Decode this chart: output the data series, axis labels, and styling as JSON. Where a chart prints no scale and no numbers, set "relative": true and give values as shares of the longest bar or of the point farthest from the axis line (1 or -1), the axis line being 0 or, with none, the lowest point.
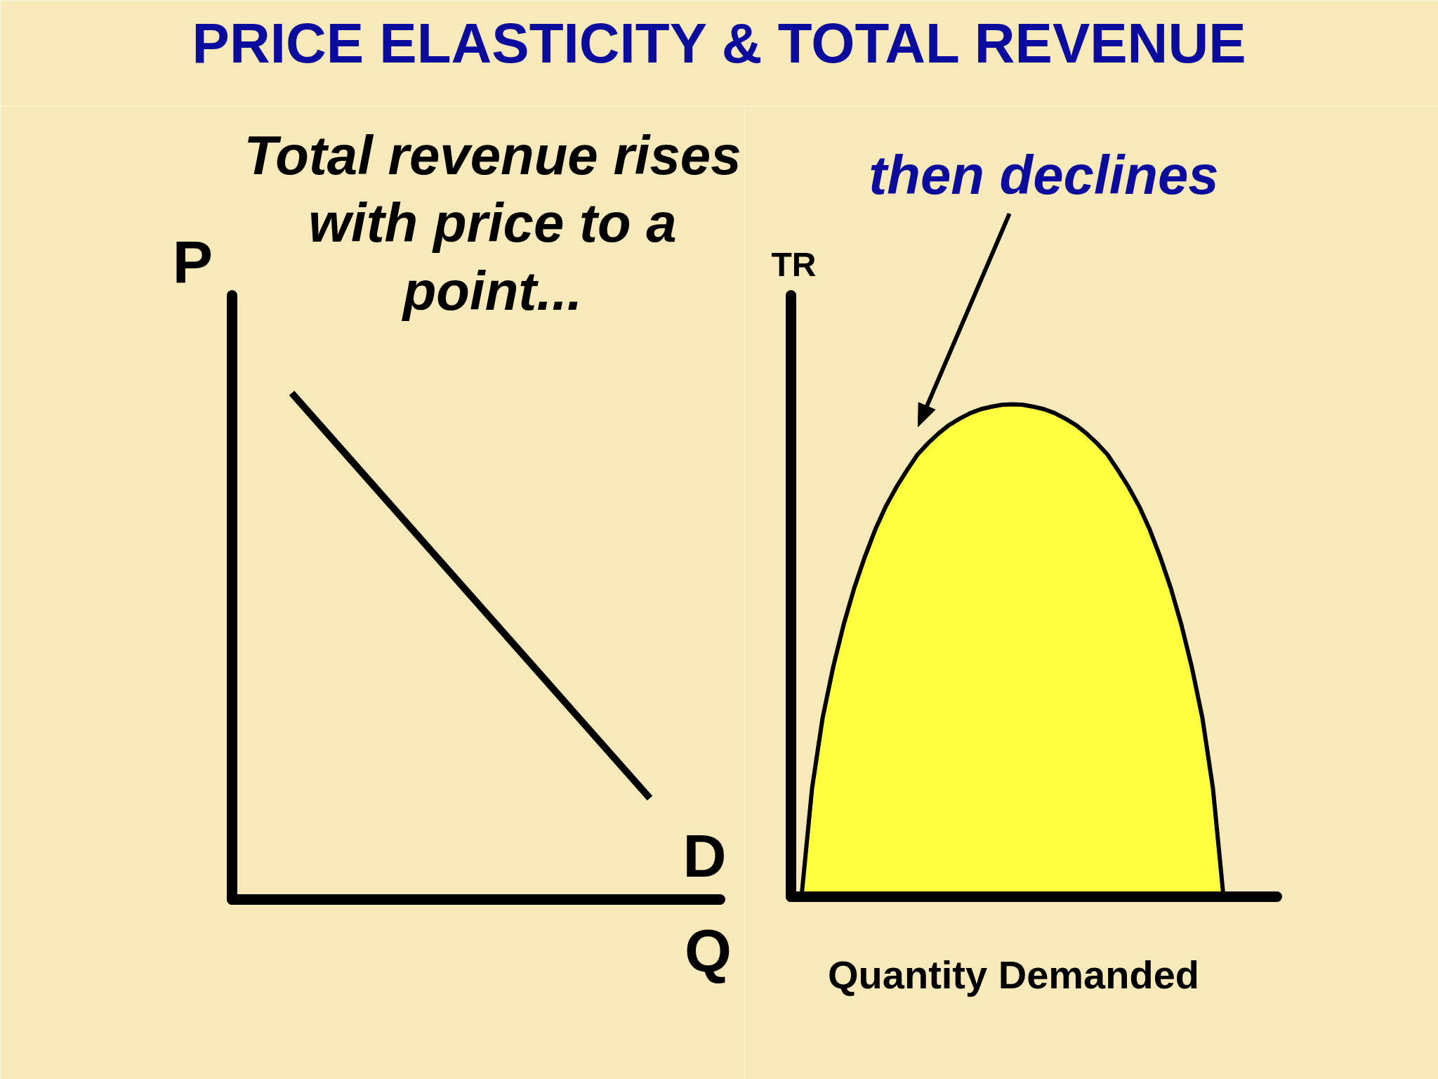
{
  "chart_data": [
    {
      "type": "other",
      "title": "PRICE ELASTICITY & TOTAL REVENUE"
    },
    {
      "type": "line",
      "xlabel": "Q",
      "ylabel": "P",
      "annotations": [
        "Total revenue rises with price to a point..."
      ],
      "categories": [
        null,
        null,
        null,
        null,
        null,
        null
      ],
      "series": [
        {
          "name": "D",
          "color": "#000000",
          "values": [
            1,
            0.84,
            0.68,
            0.52,
            0.36,
            0.2
          ]
        }
      ],
      "relative": true
    },
    {
      "type": "area",
      "xlabel": "Quantity Demanded",
      "ylabel": "TR",
      "annotations": [
        "then declines"
      ],
      "categories": [
        null,
        null,
        null,
        null,
        null,
        null,
        null,
        null,
        null,
        null,
        null,
        null,
        null,
        null,
        null,
        null,
        null,
        null,
        null,
        null,
        null,
        null,
        null,
        null,
        null,
        null,
        null,
        null,
        null,
        null,
        null,
        null,
        null,
        null,
        null,
        null,
        null,
        null,
        null,
        null,
        null
      ],
      "series": [
        {
          "color": "#ffff40",
          "values": [
            0,
            0.22,
            0.363,
            0.466,
            0.553,
            0.627,
            0.69,
            0.746,
            0.793,
            0.832,
            0.866,
            0.898,
            0.921,
            0.941,
            0.958,
            0.971,
            0.982,
            0.99,
            0.995,
            0.999,
            1,
            0.999,
            0.995,
            0.99,
            0.982,
            0.971,
            0.958,
            0.941,
            0.921,
            0.898,
            0.866,
            0.832,
            0.793,
            0.746,
            0.69,
            0.627,
            0.553,
            0.466,
            0.363,
            0.22,
            0
          ]
        }
      ],
      "relative": true
    }
  ]
}
